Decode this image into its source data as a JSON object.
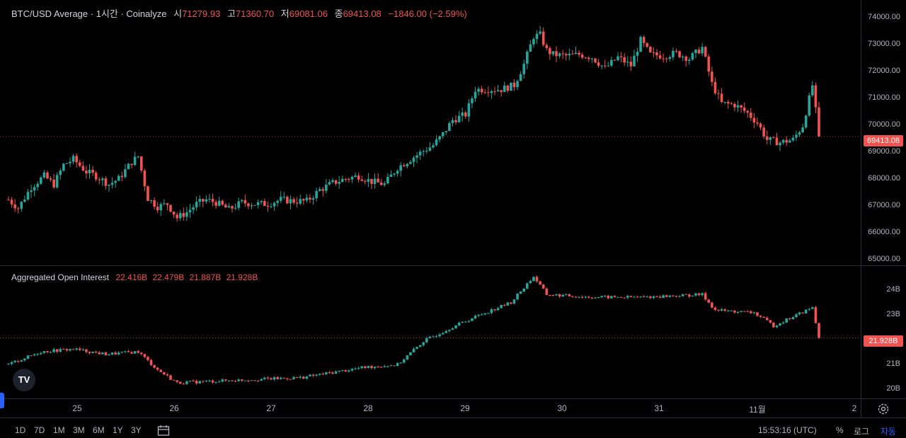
{
  "header": {
    "title": "BTC/USD Average · 1시간 · Coinalyze",
    "open_label": "시",
    "open": "71279.93",
    "high_label": "고",
    "high": "71360.70",
    "low_label": "저",
    "low": "69081.06",
    "close_label": "종",
    "close": "69413.08",
    "change": "−1846.00 (−2.59%)"
  },
  "oi_header": {
    "title": "Aggregated Open Interest",
    "o": "22.416B",
    "h": "22.479B",
    "l": "21.887B",
    "c": "21.928B"
  },
  "price_axis": {
    "ticks": [
      "74000.00",
      "73000.00",
      "72000.00",
      "71000.00",
      "70000.00",
      "69000.00",
      "68000.00",
      "67000.00",
      "66000.00",
      "65000.00"
    ],
    "current": "69413.08"
  },
  "oi_axis": {
    "ticks": [
      "24B",
      "23B",
      "21B",
      "20B"
    ],
    "current": "21.928B"
  },
  "time_axis": {
    "ticks": [
      "25",
      "26",
      "27",
      "28",
      "29",
      "30",
      "31",
      "11월",
      "2"
    ]
  },
  "bottom_bar": {
    "ranges": [
      "1D",
      "7D",
      "1M",
      "3M",
      "6M",
      "1Y",
      "3Y"
    ],
    "clock": "15:53:16 (UTC)",
    "percent": "%",
    "log": "로그",
    "auto": "자동"
  },
  "logo": "TV",
  "colors": {
    "up": "#26a69a",
    "down": "#f05350",
    "accent": "#2962ff"
  },
  "chart_data": [
    {
      "type": "candlestick",
      "title": "BTC/USD Average · 1시간 · Coinalyze",
      "ylim": [
        64800,
        74300
      ],
      "x_start": "24",
      "x_ticks": [
        "25",
        "26",
        "27",
        "28",
        "29",
        "30",
        "31",
        "11월",
        "2"
      ],
      "series": [
        {
          "keypoints": [
            [
              0,
              67150
            ],
            [
              3,
              66850
            ],
            [
              7,
              67600
            ],
            [
              11,
              68000
            ],
            [
              14,
              67700
            ],
            [
              17,
              68400
            ],
            [
              20,
              68600
            ],
            [
              24,
              68150
            ],
            [
              27,
              68000
            ],
            [
              31,
              67700
            ],
            [
              34,
              67900
            ],
            [
              38,
              68500
            ],
            [
              40,
              68700
            ],
            [
              43,
              67200
            ],
            [
              46,
              66900
            ],
            [
              49,
              67000
            ],
            [
              52,
              66500
            ],
            [
              55,
              66700
            ],
            [
              58,
              67000
            ],
            [
              61,
              67150
            ],
            [
              64,
              67050
            ],
            [
              68,
              66800
            ],
            [
              72,
              67050
            ],
            [
              76,
              67000
            ],
            [
              80,
              67000
            ],
            [
              84,
              67150
            ],
            [
              88,
              67100
            ],
            [
              92,
              67100
            ],
            [
              96,
              67500
            ],
            [
              100,
              67750
            ],
            [
              104,
              67900
            ],
            [
              108,
              68000
            ],
            [
              112,
              67800
            ],
            [
              116,
              67700
            ],
            [
              120,
              68300
            ],
            [
              124,
              68600
            ],
            [
              128,
              68900
            ],
            [
              131,
              69100
            ],
            [
              134,
              69500
            ],
            [
              137,
              70000
            ],
            [
              141,
              70200
            ],
            [
              144,
              71100
            ],
            [
              148,
              71100
            ],
            [
              152,
              71100
            ],
            [
              156,
              71250
            ],
            [
              159,
              72000
            ],
            [
              162,
              73000
            ],
            [
              164,
              73050
            ],
            [
              166,
              72500
            ],
            [
              168,
              72350
            ],
            [
              172,
              72300
            ],
            [
              176,
              72350
            ],
            [
              180,
              72250
            ],
            [
              184,
              71850
            ],
            [
              188,
              72250
            ],
            [
              192,
              71950
            ],
            [
              195,
              72850
            ],
            [
              198,
              72350
            ],
            [
              202,
              72300
            ],
            [
              206,
              72400
            ],
            [
              210,
              72200
            ],
            [
              214,
              72600
            ],
            [
              217,
              71300
            ],
            [
              220,
              70600
            ],
            [
              224,
              70550
            ],
            [
              228,
              70250
            ],
            [
              231,
              69900
            ],
            [
              234,
              69300
            ],
            [
              238,
              69200
            ],
            [
              242,
              69300
            ],
            [
              245,
              69800
            ],
            [
              248,
              71250
            ],
            [
              250,
              69413
            ]
          ]
        }
      ]
    },
    {
      "type": "candlestick",
      "title": "Aggregated Open Interest",
      "ylim": [
        19.6,
        24.7
      ],
      "x_ticks": [
        "25",
        "26",
        "27",
        "28",
        "29",
        "30",
        "31",
        "11월",
        "2"
      ],
      "series": [
        {
          "keypoints": [
            [
              0,
              20.9
            ],
            [
              10,
              21.4
            ],
            [
              20,
              21.5
            ],
            [
              30,
              21.3
            ],
            [
              40,
              21.4
            ],
            [
              46,
              20.7
            ],
            [
              52,
              20.2
            ],
            [
              70,
              20.3
            ],
            [
              90,
              20.4
            ],
            [
              110,
              20.8
            ],
            [
              120,
              20.9
            ],
            [
              128,
              21.8
            ],
            [
              136,
              22.3
            ],
            [
              145,
              22.8
            ],
            [
              155,
              23.3
            ],
            [
              162,
              24.3
            ],
            [
              166,
              23.6
            ],
            [
              180,
              23.5
            ],
            [
              195,
              23.5
            ],
            [
              214,
              23.6
            ],
            [
              218,
              23.0
            ],
            [
              230,
              22.9
            ],
            [
              236,
              22.4
            ],
            [
              248,
              23.1
            ],
            [
              250,
              21.928
            ]
          ]
        }
      ]
    }
  ]
}
